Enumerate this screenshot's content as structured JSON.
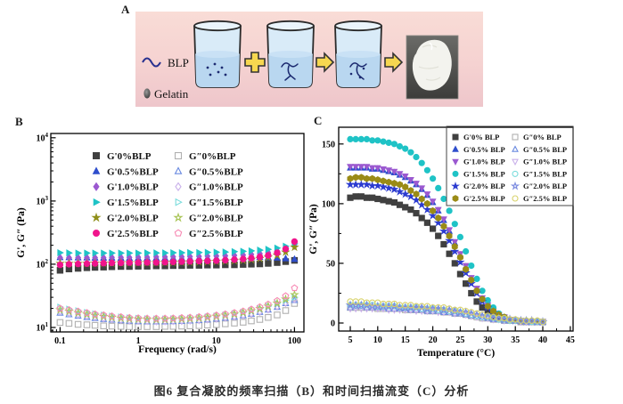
{
  "caption": "图6 复合凝胶的频率扫描（B）和时间扫描流变（C）分析",
  "panels": {
    "a": {
      "label": "A",
      "blp_label": "BLP",
      "gelatin_label": "Gelatin"
    },
    "b": {
      "label": "B"
    },
    "c": {
      "label": "C"
    }
  },
  "colors": {
    "panel_a_bg_top": "#f9dcd6",
    "panel_a_bg_bottom": "#eec6cb",
    "beaker_glass": "#d9ebf8",
    "beaker_liquid": "#b9d7f0",
    "polymer_navy": "#1c2a70",
    "arrow_yellow": "#f6d750",
    "photo_bg": "#4a4a4a",
    "gel_white": "#f3f3ee"
  },
  "chart_data": [
    {
      "panel": "B",
      "type": "scatter",
      "title": "",
      "xlabel": "Frequency (rad/s)",
      "ylabel": "G', G\" (Pa)",
      "xscale": "log",
      "yscale": "log",
      "xlim": [
        0.076,
        132
      ],
      "ylim": [
        8.5,
        11700
      ],
      "xticks": [
        0.1,
        1,
        10,
        100
      ],
      "xticklabels": [
        "0.1",
        "1",
        "10",
        "100"
      ],
      "yticks": [
        10,
        100,
        1000,
        10000
      ],
      "grid": false,
      "legend_position": "upper-center-inside, two columns, no border",
      "x": [
        0.1,
        0.13,
        0.17,
        0.22,
        0.28,
        0.36,
        0.46,
        0.6,
        0.77,
        1,
        1.3,
        1.7,
        2.2,
        2.8,
        3.6,
        4.6,
        6,
        7.7,
        10,
        13,
        17,
        22,
        28,
        36,
        46,
        60,
        77,
        100
      ],
      "series": [
        {
          "name": "G'0%BLP",
          "symbol": "square",
          "filled": true,
          "color": "#404040",
          "values": [
            80,
            84,
            86,
            88,
            89,
            90,
            91,
            92,
            92,
            93,
            93,
            94,
            94,
            95,
            95,
            96,
            96,
            97,
            97,
            98,
            98,
            99,
            100,
            101,
            103,
            106,
            110,
            115
          ]
        },
        {
          "name": "G'0.5%BLP",
          "symbol": "triangle-up",
          "filled": true,
          "color": "#2f4ecc",
          "values": [
            128,
            128,
            127,
            127,
            126,
            126,
            126,
            125,
            125,
            125,
            125,
            125,
            125,
            125,
            125,
            125,
            126,
            126,
            126,
            127,
            127,
            128,
            128,
            129,
            128,
            126,
            123,
            120
          ]
        },
        {
          "name": "G'1.0%BLP",
          "symbol": "diamond",
          "filled": true,
          "color": "#9b59d0",
          "values": [
            127,
            127,
            127,
            127,
            127,
            127,
            128,
            128,
            128,
            129,
            129,
            130,
            130,
            131,
            131,
            132,
            133,
            134,
            135,
            136,
            138,
            140,
            143,
            147,
            153,
            162,
            175,
            196
          ]
        },
        {
          "name": "G'1.5%BLP",
          "symbol": "triangle-right",
          "filled": true,
          "color": "#1fc3c6",
          "values": [
            152,
            151,
            150,
            150,
            150,
            150,
            150,
            150,
            150,
            150,
            151,
            151,
            151,
            152,
            152,
            153,
            153,
            154,
            155,
            156,
            158,
            160,
            163,
            167,
            172,
            180,
            193,
            210
          ]
        },
        {
          "name": "G'2.0%BLP",
          "symbol": "star",
          "filled": true,
          "color": "#8f8f1a",
          "values": [
            103,
            103,
            103,
            103,
            104,
            104,
            104,
            105,
            105,
            105,
            106,
            106,
            107,
            107,
            108,
            108,
            109,
            110,
            111,
            112,
            114,
            116,
            119,
            123,
            129,
            139,
            155,
            186
          ]
        },
        {
          "name": "G'2.5%BLP",
          "symbol": "circle",
          "filled": true,
          "color": "#f0148c",
          "values": [
            98,
            100,
            101,
            102,
            103,
            104,
            105,
            105,
            106,
            106,
            107,
            107,
            108,
            109,
            110,
            111,
            112,
            113,
            114,
            116,
            118,
            121,
            125,
            130,
            138,
            152,
            175,
            228
          ]
        },
        {
          "name": "G\"0%BLP",
          "symbol": "square",
          "filled": false,
          "color": "#b0b0b0",
          "values": [
            12,
            11.6,
            11.2,
            11,
            10.8,
            10.6,
            10.5,
            10.4,
            10.3,
            10.3,
            10.3,
            10.3,
            10.4,
            10.4,
            10.5,
            10.6,
            10.7,
            10.9,
            11.1,
            11.4,
            11.7,
            12.1,
            12.7,
            13.4,
            14.4,
            15.8,
            18.5,
            24
          ]
        },
        {
          "name": "G\"0.5%BLP",
          "symbol": "triangle-up",
          "filled": false,
          "color": "#6a8ae0",
          "values": [
            17,
            16,
            15.2,
            14.5,
            14,
            13.5,
            13.2,
            12.9,
            12.7,
            12.5,
            12.4,
            12.4,
            12.4,
            12.5,
            12.6,
            12.8,
            13,
            13.3,
            13.7,
            14.1,
            14.7,
            15.4,
            16.3,
            17.5,
            19,
            21,
            24,
            27
          ]
        },
        {
          "name": "G\"1.0%BLP",
          "symbol": "diamond",
          "filled": false,
          "color": "#c9b0ea",
          "values": [
            18,
            17,
            16,
            15.2,
            14.6,
            14,
            13.6,
            13.2,
            12.9,
            12.7,
            12.6,
            12.5,
            12.5,
            12.6,
            12.7,
            12.9,
            13.1,
            13.4,
            13.8,
            14.3,
            14.9,
            15.6,
            16.5,
            17.7,
            19.3,
            21.5,
            24.5,
            28
          ]
        },
        {
          "name": "G\"1.5%BLP",
          "symbol": "triangle-right",
          "filled": false,
          "color": "#7adcdc",
          "values": [
            21,
            19.5,
            18.3,
            17.3,
            16.4,
            15.7,
            15.1,
            14.6,
            14.2,
            13.9,
            13.7,
            13.6,
            13.6,
            13.7,
            13.8,
            14,
            14.3,
            14.7,
            15.2,
            15.8,
            16.5,
            17.4,
            18.5,
            19.9,
            21.7,
            24,
            27,
            30
          ]
        },
        {
          "name": "G\"2.0%BLP",
          "symbol": "star",
          "filled": false,
          "color": "#a8c455",
          "values": [
            19,
            18,
            17,
            16.2,
            15.5,
            14.9,
            14.4,
            14,
            13.7,
            13.5,
            13.4,
            13.3,
            13.4,
            13.5,
            13.6,
            13.8,
            14.1,
            14.5,
            15,
            15.6,
            16.3,
            17.2,
            18.4,
            19.8,
            21.7,
            24.2,
            28,
            33
          ]
        },
        {
          "name": "G\"2.5%BLP",
          "symbol": "pentagon",
          "filled": false,
          "color": "#f78ab4",
          "values": [
            20,
            19,
            18,
            17.1,
            16.3,
            15.7,
            15.1,
            14.7,
            14.3,
            14.1,
            13.9,
            13.9,
            13.9,
            14,
            14.2,
            14.4,
            14.7,
            15.1,
            15.6,
            16.3,
            17.1,
            18.1,
            19.4,
            21.1,
            23.3,
            26.5,
            31.5,
            42
          ]
        }
      ]
    },
    {
      "panel": "C",
      "type": "scatter",
      "title": "",
      "xlabel": "Temperature (°C)",
      "ylabel": "G', G\" (Pa)",
      "xscale": "linear",
      "yscale": "linear",
      "xlim": [
        2.9,
        45.5
      ],
      "ylim": [
        -6.7,
        164
      ],
      "xticks": [
        5,
        10,
        15,
        20,
        25,
        30,
        35,
        40,
        45
      ],
      "xticklabels": [
        "5",
        "10",
        "15",
        "20",
        "25",
        "30",
        "35",
        "40",
        "45"
      ],
      "yticks": [
        0,
        50,
        100,
        150
      ],
      "xminor": 2.5,
      "yminor": 25,
      "grid": false,
      "legend_position": "upper-right-inside, two columns, boxed",
      "x": [
        5,
        6,
        7,
        8,
        9,
        10,
        11,
        12,
        13,
        14,
        15,
        16,
        17,
        18,
        19,
        20,
        21,
        22,
        23,
        24,
        25,
        26,
        27,
        28,
        29,
        30,
        31,
        32,
        33,
        34,
        35,
        36,
        37,
        38,
        39,
        40
      ],
      "series": [
        {
          "name": "G'0% BLP",
          "symbol": "square",
          "filled": true,
          "color": "#404040",
          "values": [
            105,
            106,
            106,
            105,
            105,
            104,
            103,
            102,
            101,
            99,
            97,
            95,
            92,
            88,
            84,
            79,
            73,
            66,
            58,
            50,
            41,
            33,
            25,
            18,
            13,
            9,
            6,
            4,
            3,
            2,
            2,
            1,
            1,
            1,
            1,
            1
          ]
        },
        {
          "name": "G'0.5% BLP",
          "symbol": "triangle-up",
          "filled": true,
          "color": "#2f4ecc",
          "values": [
            130,
            130,
            130,
            130,
            129,
            129,
            128,
            127,
            126,
            124,
            122,
            119,
            116,
            112,
            107,
            101,
            94,
            86,
            77,
            67,
            57,
            47,
            37,
            28,
            20,
            14,
            9,
            6,
            4,
            3,
            2,
            2,
            1,
            1,
            1,
            1
          ]
        },
        {
          "name": "G'1.0% BLP",
          "symbol": "triangle-down",
          "filled": true,
          "color": "#9b59d0",
          "values": [
            131,
            131,
            131,
            131,
            130,
            130,
            129,
            128,
            127,
            125,
            123,
            120,
            117,
            113,
            108,
            102,
            95,
            87,
            78,
            68,
            58,
            48,
            38,
            29,
            21,
            15,
            10,
            7,
            5,
            3,
            2,
            2,
            1,
            1,
            1,
            1
          ]
        },
        {
          "name": "G'1.5% BLP",
          "symbol": "circle",
          "filled": true,
          "color": "#1fc3c6",
          "values": [
            154,
            154,
            154,
            154,
            153,
            153,
            152,
            151,
            150,
            148,
            146,
            143,
            139,
            134,
            128,
            121,
            113,
            104,
            94,
            83,
            72,
            60,
            48,
            37,
            27,
            19,
            13,
            8,
            5,
            3,
            2,
            2,
            1,
            1,
            1,
            1
          ]
        },
        {
          "name": "G'2.0% BLP",
          "symbol": "star",
          "filled": true,
          "color": "#2b3bd0",
          "values": [
            116,
            116,
            116,
            116,
            115,
            115,
            114,
            113,
            112,
            110,
            108,
            106,
            103,
            99,
            95,
            90,
            84,
            77,
            69,
            60,
            51,
            42,
            33,
            25,
            18,
            13,
            9,
            6,
            4,
            3,
            2,
            2,
            1,
            1,
            1,
            1
          ]
        },
        {
          "name": "G'2.5% BLP",
          "symbol": "hexagon",
          "filled": true,
          "color": "#9a8b16",
          "values": [
            121,
            122,
            122,
            121,
            121,
            120,
            119,
            118,
            117,
            116,
            114,
            111,
            108,
            104,
            100,
            94,
            88,
            81,
            73,
            64,
            55,
            45,
            36,
            27,
            20,
            14,
            10,
            7,
            5,
            3,
            2,
            2,
            1,
            1,
            1,
            1
          ]
        },
        {
          "name": "G\"0% BLP",
          "symbol": "square",
          "filled": false,
          "color": "#b0b0b0",
          "values": [
            13,
            13,
            13,
            13,
            13,
            12,
            12,
            12,
            12,
            12,
            11,
            11,
            11,
            11,
            10,
            10,
            10,
            9,
            9,
            8,
            8,
            7,
            6,
            5,
            4,
            4,
            3,
            3,
            2,
            2,
            2,
            1,
            1,
            1,
            1,
            1
          ]
        },
        {
          "name": "G\"0.5% BLP",
          "symbol": "triangle-up",
          "filled": false,
          "color": "#6a8ae0",
          "values": [
            13,
            14,
            14,
            13,
            13,
            13,
            13,
            12,
            12,
            12,
            12,
            11,
            11,
            11,
            10,
            10,
            10,
            9,
            9,
            8,
            8,
            7,
            6,
            6,
            5,
            4,
            3,
            3,
            2,
            2,
            2,
            2,
            1,
            1,
            1,
            1
          ]
        },
        {
          "name": "G\"1.0% BLP",
          "symbol": "triangle-down",
          "filled": false,
          "color": "#c9b0ea",
          "values": [
            12,
            12,
            12,
            12,
            12,
            12,
            12,
            11,
            11,
            11,
            11,
            11,
            10,
            10,
            10,
            10,
            9,
            9,
            9,
            8,
            8,
            7,
            6,
            5,
            4,
            4,
            3,
            3,
            2,
            2,
            2,
            1,
            1,
            1,
            1,
            1
          ]
        },
        {
          "name": "G\"1.5% BLP",
          "symbol": "circle",
          "filled": false,
          "color": "#7adcdc",
          "values": [
            15,
            15,
            15,
            15,
            15,
            14,
            14,
            14,
            14,
            13,
            13,
            13,
            13,
            12,
            12,
            12,
            11,
            11,
            10,
            10,
            9,
            8,
            7,
            6,
            5,
            5,
            4,
            3,
            3,
            2,
            2,
            2,
            2,
            1,
            1,
            1
          ]
        },
        {
          "name": "G\"2.0% BLP",
          "symbol": "star",
          "filled": false,
          "color": "#7a8ae0",
          "values": [
            15,
            15,
            15,
            15,
            14,
            14,
            14,
            14,
            14,
            13,
            13,
            13,
            13,
            13,
            12,
            12,
            12,
            11,
            11,
            10,
            9,
            9,
            8,
            7,
            6,
            5,
            4,
            4,
            3,
            3,
            2,
            2,
            2,
            2,
            1,
            1
          ]
        },
        {
          "name": "G\"2.5% BLP",
          "symbol": "circle",
          "filled": false,
          "color": "#d8d26a",
          "values": [
            18,
            18,
            18,
            17,
            17,
            17,
            16,
            16,
            16,
            15,
            15,
            15,
            14,
            14,
            14,
            13,
            13,
            13,
            12,
            11,
            11,
            10,
            9,
            8,
            7,
            6,
            5,
            4,
            4,
            3,
            3,
            2,
            2,
            2,
            2,
            1
          ]
        }
      ]
    }
  ]
}
